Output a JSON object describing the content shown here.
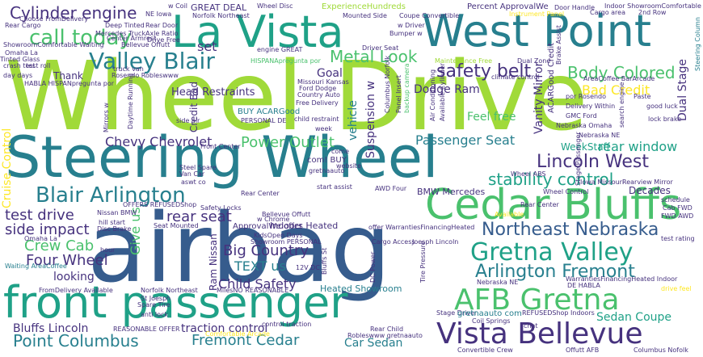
{
  "palette": {
    "navy": "#46327e",
    "blue": "#365c8d",
    "steel": "#277f8e",
    "teal": "#1fa187",
    "green": "#4ac16d",
    "lime": "#a0da39",
    "yellow": "#fde725",
    "purple": "#440154"
  },
  "words": {
    "wheel_drive": "Wheel Drive",
    "airbag": "airbag",
    "steering_wheel": "Steering Wheel",
    "front_passenger": "front passenger",
    "la_vista": "La Vista",
    "west_point": "West Point",
    "cedar_bluffs": "Cedar Bluffs",
    "afb_gretna": "AFB Gretna",
    "vista_bellevue": "Vista Bellevue",
    "gretna_valley": "Gretna Valley",
    "arlington_fremont": "Arlington Fremont",
    "northeast_nebraska": "Northeast Nebraska",
    "blair_arlington": "Blair Arlington",
    "lincoln_west": "Lincoln West",
    "valley_blair": "Valley Blair",
    "cylinder_engine": "Cylinder engine",
    "call_today": "call today",
    "safety_belt": "safety belt",
    "body_colored": "Body Colored",
    "bad_credit": "Bad Credit",
    "metal_look": "Metal Look",
    "stability_control": "stability control",
    "power_outlet": "Power Outlet",
    "passenger_seat": "Passenger Seat",
    "rear_window": "rear window",
    "chevy_chevrolet": "Chevy Chevrolet",
    "test_drive": "test drive",
    "side_impact": "side impact",
    "rear_seat": "rear seat",
    "big_country": "Big Country",
    "crew_cab": "Crew Cab",
    "four_wheel": "Four Wheel",
    "child_safety": "Child Safety",
    "text_us": "TEXT us",
    "point_columbus": "Point Columbus",
    "fremont_cedar": "Fremont Cedar",
    "traction_control": "traction control",
    "car_sedan": "Car Sedan",
    "sedan_coupe": "Sedan Coupe",
    "bluffs_lincoln": "Bluffs Lincoln",
    "dodge_ram": "Dodge Ram",
    "head_restraints": "Head Restraints",
    "cruise_control": "Cruise Control",
    "vanity_mirror": "Vanity Mirror",
    "dual_stage": "Dual Stage",
    "suspension_w": "Suspension w",
    "vehicle": "vehicle",
    "goal": "Goal",
    "set": "set",
    "thank": "Thank",
    "great_deal": "GREAT DEAL",
    "feel_free": "Feel free",
    "weekstaff": "WeekStaff",
    "looking": "looking",
    "give_us": "Give us",
    "ram_nissan": "Ram Nissan",
    "bmw_mercedes": "BMW Mercedes",
    "decades": "Decades",
    "indoors_heated": "Indoors Heated",
    "heated_showroom": "Heated Showroom",
    "credit_bad": "Credit Bad",
    "buy_acargood": "BUY ACARGood",
    "percent_approvalwe": "Percent ApprovalWe",
    "experiencehundreds": "ExperienceHundreds",
    "norfolk_northeast": "Norfolk Northeast",
    "wheel_disc": "Wheel Disc",
    "coupe_convertible": "Coupe Convertible",
    "door_handle": "Door Handle",
    "showroomcomfortable": "Indoor ShowroomComfortable",
    "cargo_area": "Cargo area",
    "second_row": "2nd Row",
    "mounted_side": "Mounted Side",
    "instrument_panel": "Instrument Panel",
    "rear_door": "Rear Door",
    "ne_iowa": "NE Iowa",
    "choose_fromdelivery": "Choose FromDelivery",
    "rear_cargo": "Rear Cargo",
    "deep_tinted": "Deep Tinted",
    "omaha_la": "Omaha La",
    "tinted_glass": "Tinted Glass",
    "test_roll": "test roll",
    "crash_test": "crash test",
    "day_days": "day days",
    "rosendo_robleswww": "Rosendo Robleswww",
    "missouri_kansas": "Missouri Kansas",
    "ford_dodge": "Ford Dodge",
    "country_auto": "Country Auto",
    "free_delivery": "Free Delivery",
    "por_rosendo": "por Rosendo",
    "delivery_within": "Delivery Within",
    "areacoffee": "AreaCoffee BarArcade",
    "paste": "Paste",
    "good_luck": "good luck",
    "lock_brake": "lock brake",
    "side_air": "side air",
    "child_restraint": "child restraint",
    "personal_de": "PERSONAL DE",
    "week": "week",
    "nebraska_omaha": "Nebraska Omaha",
    "front_center": "Front Center",
    "van_car": "Van Car",
    "steel_spare": "Steel Spare",
    "gretnaauto": "gretnaauto",
    "website": "website",
    "start_assist": "start assist",
    "awd_four": "AWD Four",
    "wheel_abs": "Wheel ABS",
    "iowa_missouri": "Iowa Missouri",
    "rearview_mirror": "Rearview Mirror",
    "wheel_control": "Wheel Control",
    "rear_center": "Rear Center",
    "schedule": "schedule",
    "cab_fwd": "Cab FWD",
    "fwd_awd": "FWD AWD",
    "test_rating": "test rating",
    "safety_locks": "Safety Locks",
    "hill_start": "hill start",
    "disc_brake": "Disc Brake",
    "seat_mounted": "Seat Mounted",
    "kidsopen_days": "KidsOpen Days",
    "showroom_personal": "Showroom PERSONAL",
    "offer_warranties": "offer WarrantiesFinancingHeated",
    "joesph_lincoln": "Joesph Lincoln",
    "cargo_access": "Cargo Access",
    "waiting_areacoffee": "Waiting AreaCoffee",
    "hour": "hour",
    "twelve_v": "12V DC",
    "dc_power": "DC Power",
    "bluffs_st": "Bluffs St",
    "fromdelivery_available": "FromDelivery Available",
    "norfolk_northeast_2": "Norfolk Northeast",
    "milesno_reasonable": "MilesNO REASONABLE",
    "st_joesph": "St Joesph",
    "spare_tire": "Spare Tire",
    "anti_lock": "anti lock",
    "reasonable_offer": "REASONABLE OFFER",
    "control_traction": "control traction",
    "rear_child": "Rear Child",
    "robleswww": "Robleswww gretnaauto",
    "tire_pressure": "Tire Pressure",
    "stage_driver": "Stage Driver",
    "coil_springs": "Coil Springs",
    "gretnaauto_com": "gretnaauto com",
    "refusedshop": "REFUSEDShop Indoors",
    "chat": "chat",
    "convertible_crew": "Convertible Crew",
    "offutt_afb": "Offutt AFB",
    "columbus_nofolk": "Columbus Nofolk",
    "drive_feel": "drive feel",
    "de_habla": "DE HABLA",
    "warranties_financing": "WarrantiesFinancingHeated Indoor",
    "nebraska_ne": "Nebraska NE",
    "habla_hispan": "HABLA HISPANpregunta por",
    "daytime_running": "Daytime Running",
    "truck_van": "truck van",
    "mirrors_w": "Mirrors w",
    "engine_great": "engine GREAT",
    "hispan_pregunta": "HISPANApregunta por",
    "bellevue_offutt": "Bellevue Offutt",
    "center_armrest": "Center Armrest",
    "axle_ratio": "Axle Ratio",
    "drive_free": "Drive Free",
    "mercedes_truck": "Mercedes Truck",
    "driver_seat": "Driver Seat",
    "bumper_w": "Bumper w",
    "w_driver": "w Driver",
    "maintenance_free": "Maintenance Free",
    "dual_zone": "Dual Zone",
    "brake_assist": "Brake Assist",
    "climate_control": "climate control",
    "columbus_norfolk": "Columbus Norfolk",
    "panel_insert": "Panel Insert",
    "backup_camera": "backup camera",
    "available_cylinder": "Available Cylinder",
    "air_conditioning": "Air Conditioning",
    "acargood_credit": "ACARGood Credit",
    "search_engine": "search engine",
    "steering_column": "Steering Column",
    "w_coil": "w Coil",
    "come": "come",
    "com_buy": "com! BUY",
    "aswt_co": "aswt co",
    "approvalwe_offer": "ApprovalWe offer",
    "offers_refused": "OFFERS REFUSEDShop",
    "w_chrome": "w Chrome",
    "bellevue_offutt_2": "Bellevue Offutt",
    "nissan_bmw": "Nissan BMW",
    "gmc_ford": "GMC Ford",
    "comfortable_waiting": "ShowroomComfortable Waiting",
    "comfortable_arcade": "Comfortable Arcade",
    "rear_center_2": "Rear Center",
    "stage_passenger": "Stage Passenger",
    "available": "Available"
  }
}
